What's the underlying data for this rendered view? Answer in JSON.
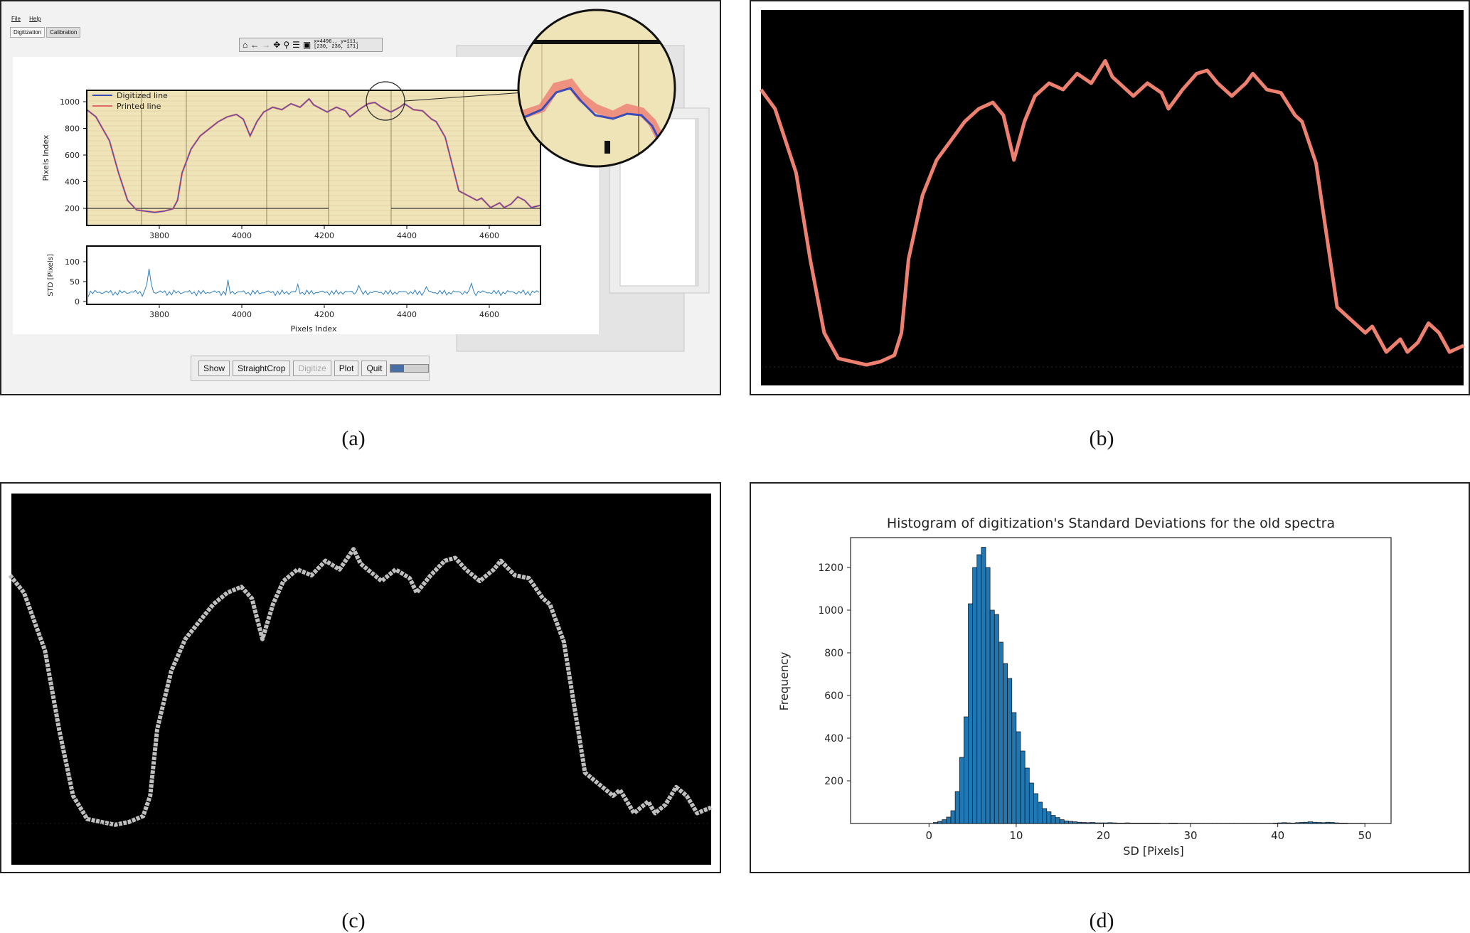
{
  "panels": {
    "a": {
      "caption": "(a)",
      "menubar": {
        "file": "File",
        "help": "Help"
      },
      "tabs": [
        {
          "label": "Digitization"
        },
        {
          "label": "Calibration"
        }
      ],
      "toolbar": {
        "icons": [
          "home-icon",
          "back-arrow-icon",
          "forward-arrow-icon",
          "pan-icon",
          "zoom-icon",
          "settings-icon",
          "save-icon"
        ],
        "coord_line1": "x=4496., y=111.",
        "coord_line2": "[230, 236, 171]"
      },
      "buttons": {
        "show": "Show",
        "straight_crop": "StraightCrop",
        "digitize": "Digitize",
        "plot": "Plot",
        "quit": "Quit"
      },
      "progress_fraction": 0.35,
      "top_plot": {
        "ylabel": "Pixels Index",
        "xticks": [
          "3800",
          "4000",
          "4200",
          "4400",
          "4600"
        ],
        "yticks": [
          "200",
          "400",
          "600",
          "800",
          "1000"
        ],
        "legend": [
          "Digitized line",
          "Printed line"
        ],
        "line_colors": {
          "digitized": "#3b4bb8",
          "printed": "#e06a6a"
        }
      },
      "bottom_plot": {
        "ylabel": "STD [Pixels]",
        "xlabel": "Pixels Index",
        "xticks": [
          "3800",
          "4000",
          "4200",
          "4400",
          "4600"
        ],
        "yticks": [
          "0",
          "50",
          "100"
        ],
        "line_color": "#2d7fbf"
      }
    },
    "b": {
      "caption": "(b)",
      "line_color": "#ee8070"
    },
    "c": {
      "caption": "(c)",
      "line_color": "#bfbfbf"
    },
    "d": {
      "caption": "(d)",
      "chart_data": {
        "type": "bar",
        "title": "Histogram of digitization's Standard Deviations for the old spectra",
        "xlabel": "SD [Pixels]",
        "ylabel": "Frequency",
        "xticks": [
          "0",
          "10",
          "20",
          "30",
          "40",
          "50"
        ],
        "yticks": [
          "200",
          "400",
          "600",
          "800",
          "1000",
          "1200"
        ],
        "xlim": [
          -9,
          53
        ],
        "ylim": [
          0,
          1340
        ],
        "bar_color": "#1f77b4",
        "bin_width": 0.5,
        "bin_start": 0.5,
        "values": [
          5,
          10,
          18,
          30,
          60,
          150,
          310,
          500,
          1030,
          1200,
          1260,
          1295,
          1200,
          1000,
          980,
          850,
          750,
          680,
          520,
          430,
          340,
          260,
          190,
          140,
          100,
          70,
          55,
          38,
          28,
          18,
          12,
          10,
          8,
          6,
          5,
          4,
          5,
          3,
          3,
          3,
          4,
          3,
          2,
          2,
          3,
          2,
          2,
          2,
          2,
          2,
          2,
          2,
          1,
          1,
          2,
          2,
          1,
          1,
          1,
          1,
          1,
          1,
          1,
          1,
          1,
          1,
          1,
          1,
          1,
          1,
          1,
          1,
          1,
          1,
          1,
          1,
          1,
          1,
          2,
          3,
          4,
          3,
          2,
          4,
          5,
          6,
          8,
          6,
          5,
          4,
          6,
          5,
          3,
          2,
          2,
          1,
          1,
          1,
          1
        ]
      }
    }
  }
}
